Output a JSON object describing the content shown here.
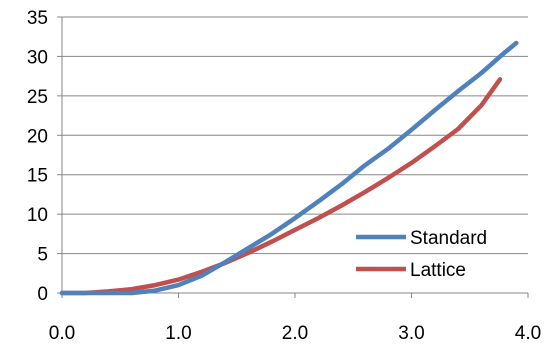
{
  "chart_data": {
    "type": "line",
    "title": "",
    "xlabel": "",
    "ylabel": "",
    "xlim": [
      0.0,
      4.0
    ],
    "ylim": [
      0,
      35
    ],
    "x_ticks": [
      0.0,
      1.0,
      2.0,
      3.0,
      4.0
    ],
    "x_tick_labels": [
      "0.0",
      "1.0",
      "2.0",
      "3.0",
      "4.0"
    ],
    "y_ticks": [
      0,
      5,
      10,
      15,
      20,
      25,
      30,
      35
    ],
    "y_tick_labels": [
      "0",
      "5",
      "10",
      "15",
      "20",
      "25",
      "30",
      "35"
    ],
    "grid": {
      "horizontal": true,
      "vertical": false
    },
    "legend_position": "bottom-right",
    "series": [
      {
        "name": "Standard",
        "color": "#4F81BD",
        "x": [
          0.0,
          0.2,
          0.4,
          0.6,
          0.8,
          1.0,
          1.2,
          1.4,
          1.6,
          1.8,
          2.0,
          2.2,
          2.4,
          2.6,
          2.8,
          3.0,
          3.2,
          3.4,
          3.6,
          3.8,
          3.9
        ],
        "y": [
          0,
          0,
          0,
          0,
          0.3,
          1.0,
          2.2,
          3.9,
          5.7,
          7.5,
          9.5,
          11.6,
          13.8,
          16.2,
          18.3,
          20.7,
          23.2,
          25.6,
          27.9,
          30.5,
          31.7
        ]
      },
      {
        "name": "Lattice",
        "color": "#C0504D",
        "x": [
          0.0,
          0.2,
          0.4,
          0.6,
          0.8,
          1.0,
          1.2,
          1.4,
          1.6,
          1.8,
          2.0,
          2.2,
          2.4,
          2.6,
          2.8,
          3.0,
          3.2,
          3.4,
          3.6,
          3.76
        ],
        "y": [
          0,
          0,
          0.2,
          0.5,
          1.0,
          1.7,
          2.7,
          3.8,
          5.1,
          6.5,
          8.0,
          9.5,
          11.1,
          12.8,
          14.6,
          16.5,
          18.6,
          20.8,
          23.8,
          27.1
        ]
      }
    ]
  }
}
